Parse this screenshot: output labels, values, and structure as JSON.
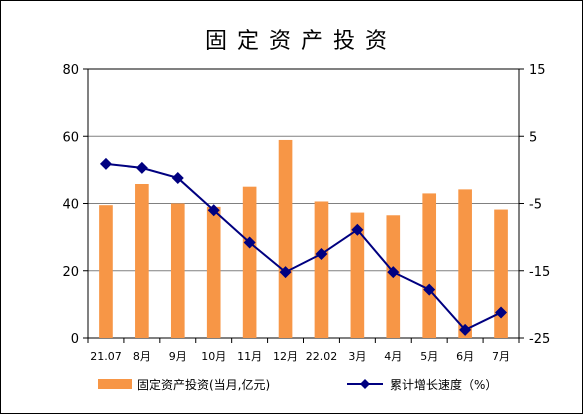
{
  "chart_data": {
    "type": "bar+line",
    "title": "固定资产投资",
    "categories": [
      "21.07",
      "8月",
      "9月",
      "10月",
      "11月",
      "12月",
      "22.02",
      "3月",
      "4月",
      "5月",
      "6月",
      "7月"
    ],
    "series": [
      {
        "name": "固定资产投资(当月,亿元)",
        "type": "bar",
        "axis": "left",
        "color": "#F79646",
        "values": [
          39.5,
          45.8,
          40.0,
          39.0,
          45.0,
          58.9,
          40.6,
          37.3,
          36.5,
          43.0,
          44.2,
          38.2
        ]
      },
      {
        "name": "累计增长速度（%）",
        "type": "line",
        "axis": "right",
        "color": "#000080",
        "values": [
          0.9,
          0.3,
          -1.2,
          -6.0,
          -10.8,
          -15.2,
          -12.5,
          -8.9,
          -15.2,
          -17.8,
          -23.8,
          -21.2
        ]
      }
    ],
    "y_left": {
      "min": 0,
      "max": 80,
      "ticks": [
        0,
        20,
        40,
        60,
        80
      ]
    },
    "y_right": {
      "min": -25,
      "max": 15,
      "ticks": [
        -25,
        -15,
        -5,
        5,
        15
      ]
    },
    "grid": "horizontal",
    "legend": "bottom"
  }
}
